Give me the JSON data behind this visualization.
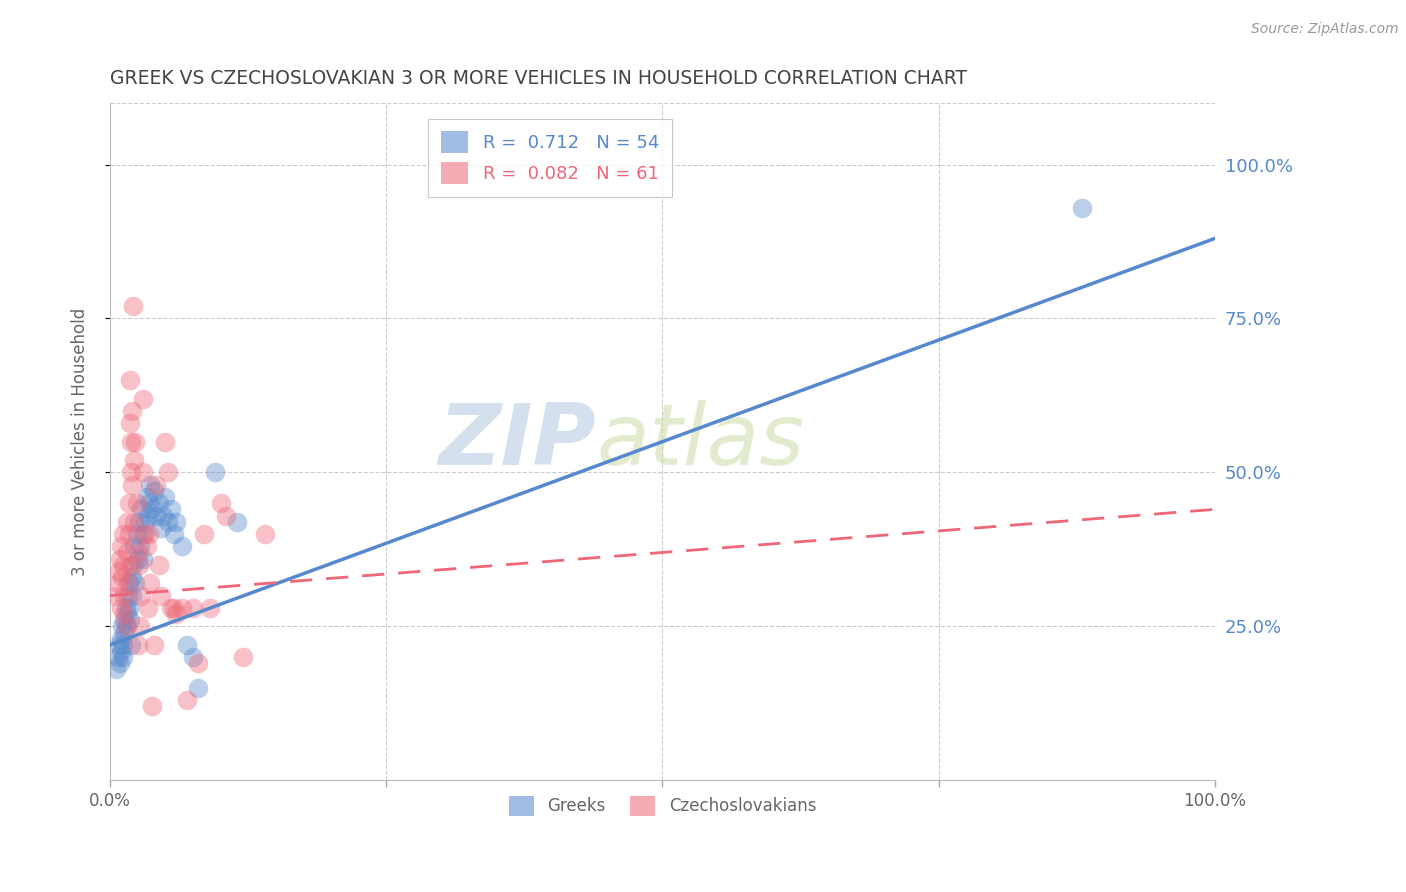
{
  "title": "GREEK VS CZECHOSLOVAKIAN 3 OR MORE VEHICLES IN HOUSEHOLD CORRELATION CHART",
  "source": "Source: ZipAtlas.com",
  "ylabel": "3 or more Vehicles in Household",
  "ytick_labels": [
    "25.0%",
    "50.0%",
    "75.0%",
    "100.0%"
  ],
  "ytick_values": [
    0.25,
    0.5,
    0.75,
    1.0
  ],
  "xlim": [
    0.0,
    1.0
  ],
  "ylim": [
    0.0,
    1.1
  ],
  "legend_entries": [
    {
      "label": "R =  0.712   N = 54",
      "color": "#5588cc"
    },
    {
      "label": "R =  0.082   N = 61",
      "color": "#ee6677"
    }
  ],
  "legend_label_greek": "Greeks",
  "legend_label_czech": "Czechoslovakians",
  "watermark_zip": "ZIP",
  "watermark_atlas": "atlas",
  "blue_scatter": [
    [
      0.005,
      0.18
    ],
    [
      0.007,
      0.2
    ],
    [
      0.008,
      0.22
    ],
    [
      0.009,
      0.19
    ],
    [
      0.01,
      0.21
    ],
    [
      0.01,
      0.23
    ],
    [
      0.011,
      0.25
    ],
    [
      0.012,
      0.2
    ],
    [
      0.012,
      0.22
    ],
    [
      0.013,
      0.24
    ],
    [
      0.013,
      0.26
    ],
    [
      0.014,
      0.28
    ],
    [
      0.015,
      0.25
    ],
    [
      0.015,
      0.27
    ],
    [
      0.016,
      0.3
    ],
    [
      0.017,
      0.28
    ],
    [
      0.018,
      0.32
    ],
    [
      0.018,
      0.26
    ],
    [
      0.019,
      0.22
    ],
    [
      0.02,
      0.3
    ],
    [
      0.02,
      0.33
    ],
    [
      0.021,
      0.35
    ],
    [
      0.022,
      0.38
    ],
    [
      0.023,
      0.32
    ],
    [
      0.024,
      0.4
    ],
    [
      0.025,
      0.36
    ],
    [
      0.026,
      0.42
    ],
    [
      0.027,
      0.38
    ],
    [
      0.028,
      0.44
    ],
    [
      0.03,
      0.4
    ],
    [
      0.03,
      0.36
    ],
    [
      0.032,
      0.42
    ],
    [
      0.033,
      0.46
    ],
    [
      0.034,
      0.43
    ],
    [
      0.035,
      0.45
    ],
    [
      0.036,
      0.48
    ],
    [
      0.038,
      0.44
    ],
    [
      0.04,
      0.47
    ],
    [
      0.042,
      0.43
    ],
    [
      0.044,
      0.45
    ],
    [
      0.046,
      0.41
    ],
    [
      0.048,
      0.43
    ],
    [
      0.05,
      0.46
    ],
    [
      0.052,
      0.42
    ],
    [
      0.055,
      0.44
    ],
    [
      0.058,
      0.4
    ],
    [
      0.06,
      0.42
    ],
    [
      0.065,
      0.38
    ],
    [
      0.07,
      0.22
    ],
    [
      0.075,
      0.2
    ],
    [
      0.08,
      0.15
    ],
    [
      0.095,
      0.5
    ],
    [
      0.115,
      0.42
    ],
    [
      0.88,
      0.93
    ]
  ],
  "pink_scatter": [
    [
      0.005,
      0.3
    ],
    [
      0.007,
      0.32
    ],
    [
      0.008,
      0.34
    ],
    [
      0.009,
      0.36
    ],
    [
      0.01,
      0.38
    ],
    [
      0.01,
      0.28
    ],
    [
      0.011,
      0.33
    ],
    [
      0.012,
      0.4
    ],
    [
      0.012,
      0.35
    ],
    [
      0.013,
      0.3
    ],
    [
      0.013,
      0.27
    ],
    [
      0.014,
      0.25
    ],
    [
      0.015,
      0.42
    ],
    [
      0.015,
      0.37
    ],
    [
      0.016,
      0.32
    ],
    [
      0.017,
      0.45
    ],
    [
      0.017,
      0.4
    ],
    [
      0.018,
      0.35
    ],
    [
      0.018,
      0.58
    ],
    [
      0.018,
      0.65
    ],
    [
      0.019,
      0.5
    ],
    [
      0.019,
      0.55
    ],
    [
      0.02,
      0.6
    ],
    [
      0.02,
      0.48
    ],
    [
      0.021,
      0.77
    ],
    [
      0.022,
      0.42
    ],
    [
      0.022,
      0.52
    ],
    [
      0.023,
      0.55
    ],
    [
      0.024,
      0.45
    ],
    [
      0.025,
      0.37
    ],
    [
      0.025,
      0.22
    ],
    [
      0.026,
      0.35
    ],
    [
      0.027,
      0.25
    ],
    [
      0.028,
      0.3
    ],
    [
      0.03,
      0.62
    ],
    [
      0.03,
      0.5
    ],
    [
      0.032,
      0.4
    ],
    [
      0.033,
      0.38
    ],
    [
      0.034,
      0.28
    ],
    [
      0.035,
      0.4
    ],
    [
      0.036,
      0.32
    ],
    [
      0.038,
      0.12
    ],
    [
      0.04,
      0.22
    ],
    [
      0.042,
      0.48
    ],
    [
      0.044,
      0.35
    ],
    [
      0.046,
      0.3
    ],
    [
      0.05,
      0.55
    ],
    [
      0.052,
      0.5
    ],
    [
      0.055,
      0.28
    ],
    [
      0.058,
      0.28
    ],
    [
      0.06,
      0.27
    ],
    [
      0.065,
      0.28
    ],
    [
      0.07,
      0.13
    ],
    [
      0.075,
      0.28
    ],
    [
      0.08,
      0.19
    ],
    [
      0.085,
      0.4
    ],
    [
      0.09,
      0.28
    ],
    [
      0.1,
      0.45
    ],
    [
      0.105,
      0.43
    ],
    [
      0.12,
      0.2
    ],
    [
      0.14,
      0.4
    ]
  ],
  "blue_line": {
    "x": [
      0.0,
      1.0
    ],
    "y": [
      0.22,
      0.88
    ]
  },
  "pink_line": {
    "x": [
      0.0,
      1.0
    ],
    "y": [
      0.3,
      0.44
    ]
  },
  "blue_color": "#5588cc",
  "pink_color": "#ee6677",
  "background_color": "#ffffff",
  "grid_color": "#cccccc",
  "title_color": "#444444",
  "right_axis_color": "#5588cc"
}
